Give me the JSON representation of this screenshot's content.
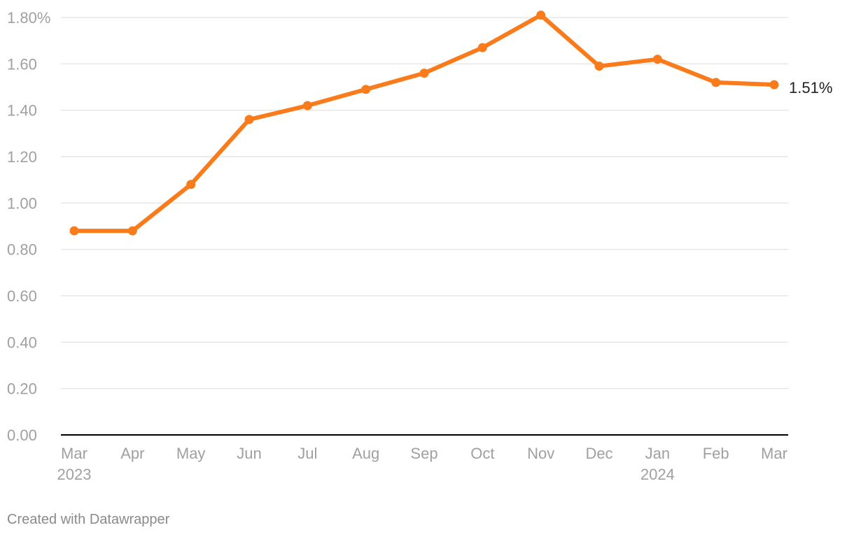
{
  "chart_data": {
    "type": "line",
    "title": "",
    "xlabel": "",
    "ylabel": "",
    "x": [
      "Mar 2023",
      "Apr 2023",
      "May 2023",
      "Jun 2023",
      "Jul 2023",
      "Aug 2023",
      "Sep 2023",
      "Oct 2023",
      "Nov 2023",
      "Dec 2023",
      "Jan 2024",
      "Feb 2024",
      "Mar 2024"
    ],
    "x_tick_labels": [
      {
        "line1": "Mar",
        "line2": "2023"
      },
      {
        "line1": "Apr",
        "line2": ""
      },
      {
        "line1": "May",
        "line2": ""
      },
      {
        "line1": "Jun",
        "line2": ""
      },
      {
        "line1": "Jul",
        "line2": ""
      },
      {
        "line1": "Aug",
        "line2": ""
      },
      {
        "line1": "Sep",
        "line2": ""
      },
      {
        "line1": "Oct",
        "line2": ""
      },
      {
        "line1": "Nov",
        "line2": ""
      },
      {
        "line1": "Dec",
        "line2": ""
      },
      {
        "line1": "Jan",
        "line2": "2024"
      },
      {
        "line1": "Feb",
        "line2": ""
      },
      {
        "line1": "Mar",
        "line2": ""
      }
    ],
    "series": [
      {
        "values": [
          0.88,
          0.88,
          1.08,
          1.36,
          1.42,
          1.49,
          1.56,
          1.67,
          1.81,
          1.59,
          1.62,
          1.52,
          1.51
        ],
        "color": "#fa7b1c"
      }
    ],
    "y_ticks": [
      0,
      0.2,
      0.4,
      0.6,
      0.8,
      1.0,
      1.2,
      1.4,
      1.6,
      1.8
    ],
    "y_tick_labels": [
      "0.00",
      "0.20",
      "0.40",
      "0.60",
      "0.80",
      "1.00",
      "1.20",
      "1.40",
      "1.60",
      "1.80%"
    ],
    "ylim": [
      0,
      1.8
    ],
    "grid": true,
    "end_label": "1.51%",
    "gridline_color": "#e0e0e0",
    "baseline_color": "#000000"
  },
  "footer": {
    "credit": "Created with Datawrapper"
  }
}
